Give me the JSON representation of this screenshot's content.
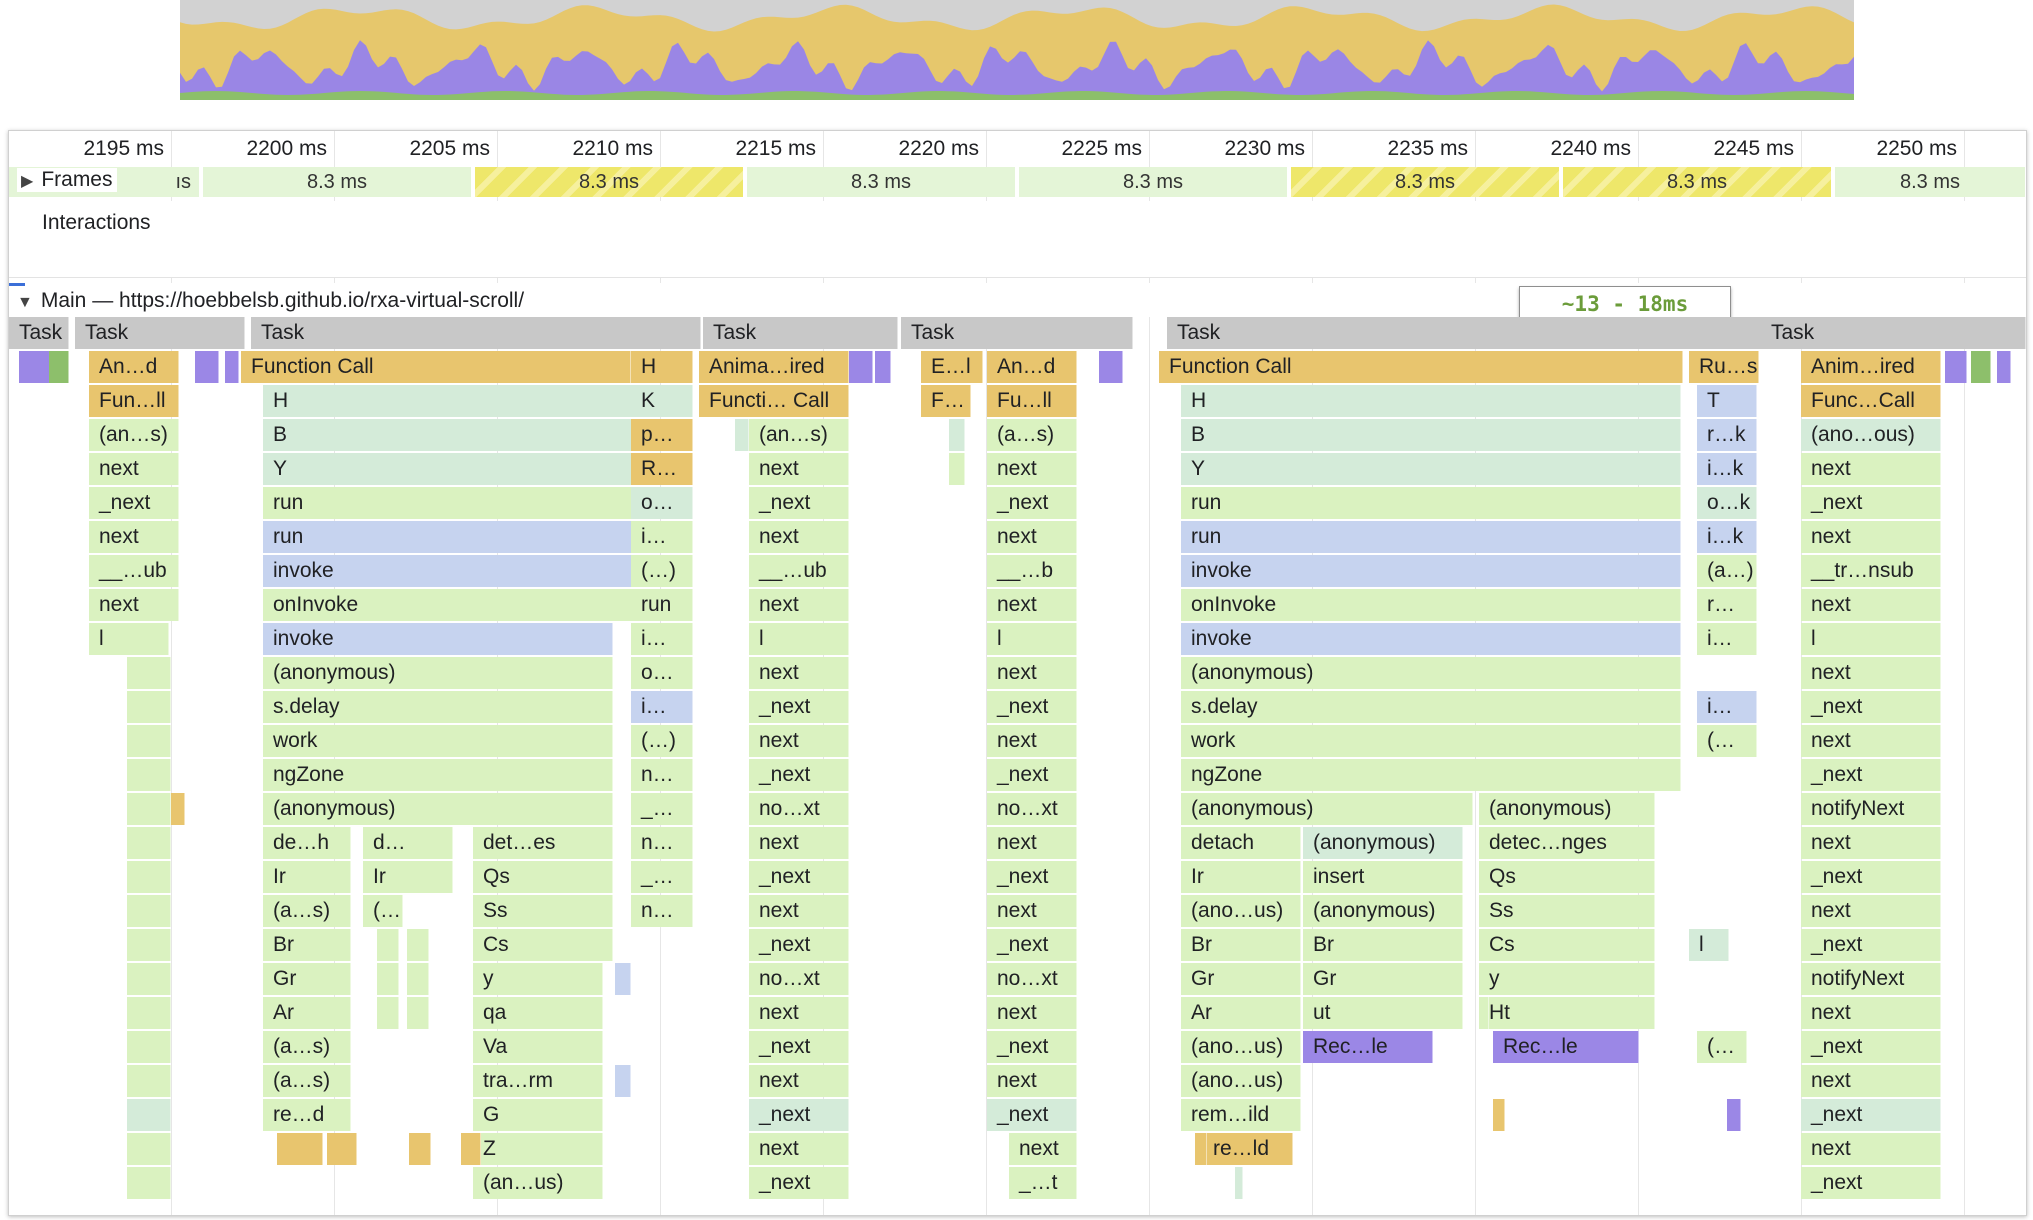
{
  "ruler": {
    "ticks": [
      "2195 ms",
      "2200 ms",
      "2205 ms",
      "2210 ms",
      "2215 ms",
      "2220 ms",
      "2225 ms",
      "2230 ms",
      "2235 ms",
      "2240 ms",
      "2245 ms",
      "2250 ms"
    ]
  },
  "frames": {
    "label": "Frames",
    "leading": "ıs",
    "durations": [
      "8.3 ms",
      "8.3 ms",
      "8.3 ms",
      "8.3 ms",
      "8.3 ms",
      "8.3 ms",
      "8.3 ms"
    ]
  },
  "interactions": {
    "label": "Interactions"
  },
  "main": {
    "title": "Main — https://hoebbelsb.github.io/rxa-virtual-scroll/"
  },
  "annotation": {
    "text": "~13 - 18ms"
  },
  "colors": {
    "task_gray": "#c8c8c8",
    "animation_yellow": "#e8c56e",
    "script_green": "#daf2c0",
    "script_teal": "#d4ebd9",
    "script_blue": "#c6d3ef",
    "render_purple": "#9b87e6",
    "paint_green": "#8dbf6b"
  },
  "flame_rows": [
    [
      "Task",
      "Task",
      "Task",
      "Task",
      "Task",
      "Task",
      "Task"
    ],
    [
      "An…d",
      "Function Call",
      "H",
      "Anima…ired",
      "E…l",
      "An…d",
      "Function Call",
      "Ru…s",
      "Anim…ired"
    ],
    [
      "Fun…ll",
      "H",
      "K",
      "Functi… Call",
      "F…",
      "Fu…ll",
      "H",
      "T",
      "Func…Call"
    ],
    [
      "(an…s)",
      "B",
      "p…",
      "(an…s)",
      "(a…s)",
      "B",
      "r…k",
      "(ano…ous)"
    ],
    [
      "next",
      "Y",
      "R…",
      "next",
      "next",
      "Y",
      "i…k",
      "next"
    ],
    [
      "_next",
      "run",
      "o…",
      "_next",
      "_next",
      "run",
      "o…k",
      "_next"
    ],
    [
      "next",
      "run",
      "i…",
      "next",
      "next",
      "run",
      "i…k",
      "next"
    ],
    [
      "__…ub",
      "invoke",
      "(…)",
      "__…ub",
      "__…b",
      "invoke",
      "(a…)",
      "__tr…nsub"
    ],
    [
      "next",
      "onInvoke",
      "run",
      "next",
      "next",
      "onInvoke",
      "r…",
      "next"
    ],
    [
      "l",
      "invoke",
      "i…",
      "l",
      "l",
      "invoke",
      "i…",
      "l"
    ],
    [
      "(anonymous)",
      "o…",
      "next",
      "next",
      "(anonymous)",
      "next"
    ],
    [
      "s.delay",
      "i…",
      "_next",
      "_next",
      "s.delay",
      "i…",
      "_next"
    ],
    [
      "work",
      "(…)",
      "next",
      "next",
      "work",
      "(…",
      "next"
    ],
    [
      "ngZone",
      "n…",
      "_next",
      "_next",
      "ngZone",
      "_next"
    ],
    [
      "(anonymous)",
      "_…",
      "no…xt",
      "no…xt",
      "(anonymous)",
      "(anonymous)",
      "notifyNext"
    ],
    [
      "de…h",
      "d…",
      "det…es",
      "n…",
      "next",
      "next",
      "detach",
      "(anonymous)",
      "detec…nges",
      "next"
    ],
    [
      "Ir",
      "Ir",
      "Qs",
      "_…",
      "_next",
      "_next",
      "Ir",
      "insert",
      "Qs",
      "_next"
    ],
    [
      "(a…s)",
      "(…",
      "Ss",
      "n…",
      "next",
      "next",
      "(ano…us)",
      "(anonymous)",
      "Ss",
      "next"
    ],
    [
      "Br",
      "Cs",
      "_next",
      "_next",
      "Br",
      "Br",
      "Cs",
      "l",
      "_next"
    ],
    [
      "Gr",
      "y",
      "no…xt",
      "no…xt",
      "Gr",
      "Gr",
      "y",
      "notifyNext"
    ],
    [
      "Ar",
      "qa",
      "next",
      "next",
      "Ar",
      "ut",
      "Ht",
      "next"
    ],
    [
      "(a…s)",
      "Va",
      "_next",
      "_next",
      "(ano…us)",
      "Rec…le",
      "Rec…le",
      "(…",
      "_next"
    ],
    [
      "(a…s)",
      "tra…rm",
      "next",
      "next",
      "(ano…us)",
      "next"
    ],
    [
      "re…d",
      "G",
      "_next",
      "_next",
      "rem…ild",
      "_next"
    ],
    [
      "Z",
      "next",
      "next",
      "re…ld",
      "next"
    ],
    [
      "(an…us)",
      "_next",
      "_…t",
      "_next"
    ]
  ]
}
